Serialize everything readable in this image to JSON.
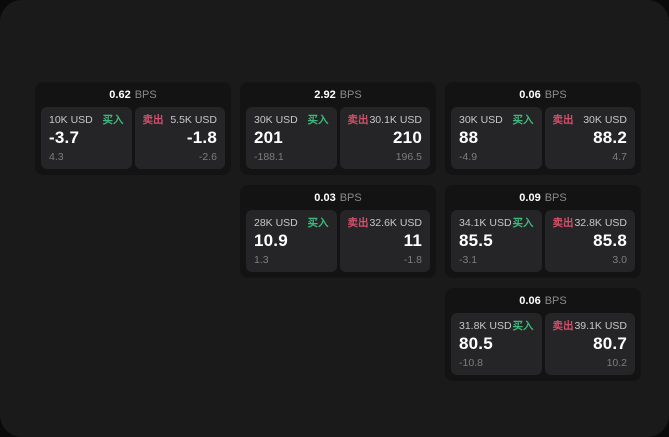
{
  "labels": {
    "bps": "BPS",
    "buy": "买入",
    "sell": "卖出"
  },
  "colors": {
    "buy_green": "#3eb87b",
    "sell_red": "#d2506a",
    "panel_bg": "#1a1a1b",
    "card_bg": "#131314",
    "subpanel_bg": "#252527"
  },
  "cards": [
    {
      "bps": "0.62",
      "buy": {
        "size": "10K USD",
        "value": "-3.7",
        "delta": "4.3"
      },
      "sell": {
        "size": "5.5K USD",
        "value": "-1.8",
        "delta": "-2.6"
      }
    },
    {
      "bps": "2.92",
      "buy": {
        "size": "30K USD",
        "value": "201",
        "delta": "-188.1"
      },
      "sell": {
        "size": "30.1K USD",
        "value": "210",
        "delta": "196.5"
      }
    },
    {
      "bps": "0.06",
      "buy": {
        "size": "30K USD",
        "value": "88",
        "delta": "-4.9"
      },
      "sell": {
        "size": "30K USD",
        "value": "88.2",
        "delta": "4.7"
      }
    },
    {
      "bps": "0.03",
      "buy": {
        "size": "28K USD",
        "value": "10.9",
        "delta": "1.3"
      },
      "sell": {
        "size": "32.6K USD",
        "value": "11",
        "delta": "-1.8"
      }
    },
    {
      "bps": "0.09",
      "buy": {
        "size": "34.1K USD",
        "value": "85.5",
        "delta": "-3.1"
      },
      "sell": {
        "size": "32.8K USD",
        "value": "85.8",
        "delta": "3.0"
      }
    },
    {
      "bps": "0.06",
      "buy": {
        "size": "31.8K USD",
        "value": "80.5",
        "delta": "-10.8"
      },
      "sell": {
        "size": "39.1K USD",
        "value": "80.7",
        "delta": "10.2"
      }
    }
  ]
}
